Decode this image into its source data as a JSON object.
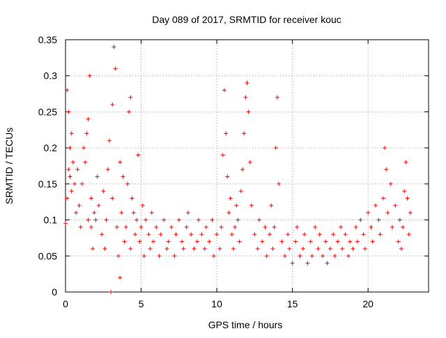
{
  "chart_data": {
    "type": "scatter",
    "title": "Day 089 of 2017, SRMTID for receiver kouc",
    "xlabel": "GPS time / hours",
    "ylabel": "SRMTID / TECUs",
    "xlim": [
      0,
      24
    ],
    "ylim": [
      0,
      0.35
    ],
    "grid": true,
    "marker": "+",
    "xticks": [
      0,
      5,
      10,
      15,
      20
    ],
    "xtick_labels": [
      "0",
      "5",
      "10",
      "15",
      "20"
    ],
    "yticks": [
      0,
      0.05,
      0.1,
      0.15,
      0.2,
      0.25,
      0.3,
      0.35
    ],
    "ytick_labels": [
      "0",
      "0.05",
      "0.1",
      "0.15",
      "0.2",
      "0.25",
      "0.3",
      "0.35"
    ],
    "series": [
      {
        "name": "SRMTID",
        "color": "#ff0000",
        "x": [
          0.0,
          0.1,
          0.1,
          0.2,
          0.2,
          0.3,
          0.3,
          0.4,
          0.4,
          0.5,
          0.6,
          0.7,
          0.8,
          0.9,
          1.0,
          1.1,
          1.2,
          1.3,
          1.4,
          1.5,
          1.5,
          1.6,
          1.7,
          1.7,
          1.8,
          1.9,
          2.0,
          2.1,
          2.2,
          2.4,
          2.5,
          2.6,
          2.7,
          2.8,
          2.9,
          3.0,
          3.1,
          3.1,
          3.2,
          3.3,
          3.4,
          3.5,
          3.6,
          3.6,
          3.7,
          3.8,
          3.9,
          4.0,
          4.1,
          4.2,
          4.3,
          4.3,
          4.4,
          4.5,
          4.6,
          4.7,
          4.8,
          4.9,
          5.0,
          5.1,
          5.2,
          5.3,
          5.5,
          5.6,
          5.7,
          5.8,
          6.0,
          6.2,
          6.3,
          6.5,
          6.7,
          6.8,
          7.0,
          7.2,
          7.3,
          7.5,
          7.7,
          7.8,
          8.0,
          8.1,
          8.3,
          8.5,
          8.7,
          8.8,
          9.0,
          9.2,
          9.3,
          9.5,
          9.7,
          9.8,
          10.0,
          10.2,
          10.3,
          10.4,
          10.5,
          10.6,
          10.7,
          10.8,
          10.9,
          11.0,
          11.1,
          11.2,
          11.3,
          11.4,
          11.5,
          11.6,
          11.7,
          11.8,
          11.9,
          12.0,
          12.1,
          12.2,
          12.3,
          12.5,
          12.7,
          12.8,
          13.0,
          13.2,
          13.3,
          13.5,
          13.6,
          13.7,
          13.8,
          13.9,
          14.0,
          14.1,
          14.3,
          14.5,
          14.7,
          14.8,
          15.0,
          15.2,
          15.3,
          15.5,
          15.7,
          15.8,
          16.0,
          16.2,
          16.3,
          16.5,
          16.7,
          16.8,
          17.0,
          17.2,
          17.3,
          17.5,
          17.7,
          17.8,
          18.0,
          18.2,
          18.3,
          18.5,
          18.7,
          18.8,
          19.0,
          19.2,
          19.3,
          19.5,
          19.7,
          19.8,
          20.0,
          20.2,
          20.3,
          20.5,
          20.7,
          20.8,
          21.0,
          21.1,
          21.2,
          21.3,
          21.5,
          21.6,
          21.8,
          22.0,
          22.1,
          22.2,
          22.3,
          22.4,
          22.5,
          22.6,
          22.7,
          22.8
        ],
        "y": [
          0.095,
          0.13,
          0.28,
          0.25,
          0.17,
          0.2,
          0.16,
          0.22,
          0.14,
          0.18,
          0.15,
          0.11,
          0.17,
          0.12,
          0.09,
          0.15,
          0.2,
          0.18,
          0.22,
          0.24,
          0.1,
          0.3,
          0.09,
          0.13,
          0.06,
          0.11,
          0.1,
          0.16,
          0.12,
          0.08,
          0.14,
          0.06,
          0.1,
          0.17,
          0.21,
          0.0,
          0.26,
          0.13,
          0.34,
          0.31,
          0.09,
          0.05,
          0.02,
          0.18,
          0.11,
          0.16,
          0.07,
          0.09,
          0.15,
          0.25,
          0.27,
          0.06,
          0.13,
          0.11,
          0.08,
          0.1,
          0.19,
          0.07,
          0.09,
          0.12,
          0.05,
          0.1,
          0.08,
          0.06,
          0.11,
          0.07,
          0.09,
          0.05,
          0.08,
          0.1,
          0.06,
          0.07,
          0.09,
          0.05,
          0.08,
          0.1,
          0.07,
          0.06,
          0.09,
          0.11,
          0.08,
          0.06,
          0.07,
          0.1,
          0.08,
          0.06,
          0.09,
          0.07,
          0.1,
          0.05,
          0.08,
          0.06,
          0.09,
          0.19,
          0.28,
          0.22,
          0.16,
          0.11,
          0.13,
          0.08,
          0.06,
          0.09,
          0.12,
          0.1,
          0.07,
          0.14,
          0.17,
          0.22,
          0.27,
          0.29,
          0.25,
          0.18,
          0.12,
          0.08,
          0.06,
          0.1,
          0.07,
          0.09,
          0.05,
          0.08,
          0.12,
          0.06,
          0.09,
          0.2,
          0.27,
          0.15,
          0.07,
          0.05,
          0.08,
          0.06,
          0.04,
          0.07,
          0.09,
          0.05,
          0.06,
          0.08,
          0.04,
          0.07,
          0.05,
          0.09,
          0.06,
          0.08,
          0.05,
          0.07,
          0.04,
          0.06,
          0.08,
          0.05,
          0.07,
          0.09,
          0.06,
          0.08,
          0.05,
          0.07,
          0.06,
          0.09,
          0.07,
          0.1,
          0.08,
          0.06,
          0.11,
          0.09,
          0.07,
          0.12,
          0.1,
          0.08,
          0.13,
          0.2,
          0.17,
          0.11,
          0.15,
          0.09,
          0.12,
          0.07,
          0.1,
          0.06,
          0.09,
          0.14,
          0.18,
          0.13,
          0.08,
          0.11
        ]
      }
    ]
  }
}
